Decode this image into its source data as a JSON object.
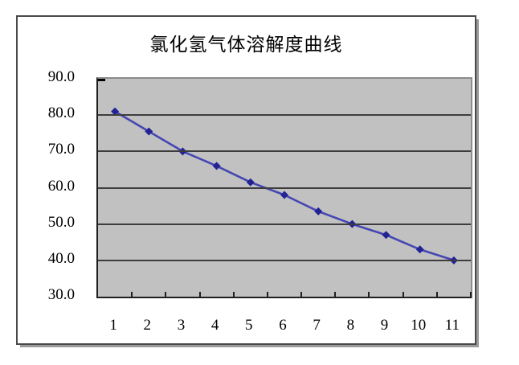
{
  "chart_data": {
    "type": "line",
    "title": "氯化氢气体溶解度曲线",
    "x": [
      1,
      2,
      3,
      4,
      5,
      6,
      7,
      8,
      9,
      10,
      11
    ],
    "xtick_labels": [
      "1",
      "2",
      "3",
      "4",
      "5",
      "6",
      "7",
      "8",
      "9",
      "10",
      "11"
    ],
    "series": [
      {
        "name": "氯化氢气体溶解度",
        "values": [
          81.0,
          75.5,
          70.0,
          66.0,
          61.5,
          58.0,
          53.5,
          50.0,
          47.0,
          43.0,
          40.0
        ]
      }
    ],
    "xlabel": "",
    "ylabel": "",
    "ylim": [
      30,
      90
    ],
    "ytick_step": 10,
    "ytick_labels": [
      "90.0",
      "80.0",
      "70.0",
      "60.0",
      "50.0",
      "40.0",
      "30.0"
    ],
    "grid": "horizontal",
    "legend_position": "none",
    "marker_shape": "diamond",
    "colors": {
      "plot_background": "#c1c1c1",
      "gridline": "#3d3d3d",
      "axis": "#202020",
      "line": "#4646b4",
      "marker": "#232394",
      "frame_border": "#4a4a4a",
      "frame_shadow": "#9a9a9a",
      "text": "#000000"
    }
  }
}
